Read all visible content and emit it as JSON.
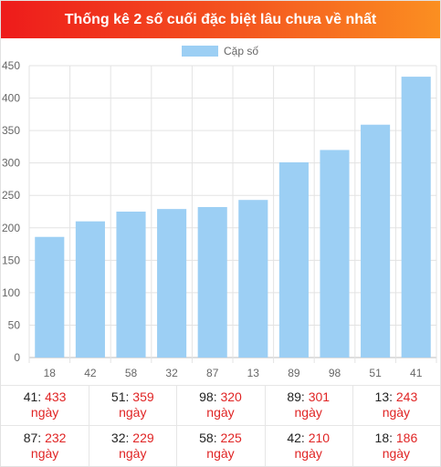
{
  "header": {
    "title": "Thống kê 2 số cuối đặc biệt lâu chưa về nhất"
  },
  "colors": {
    "bar": "#9ccff4",
    "grid": "#e3e3e3",
    "header_start": "#ee1b1b",
    "header_end": "#fb8f21",
    "value": "#e02424"
  },
  "chart_data": {
    "type": "bar",
    "categories": [
      "18",
      "42",
      "58",
      "32",
      "87",
      "13",
      "89",
      "98",
      "51",
      "41"
    ],
    "series": [
      {
        "name": "Cặp số",
        "values": [
          186,
          210,
          225,
          229,
          232,
          243,
          301,
          320,
          359,
          433
        ]
      }
    ],
    "ylim": [
      0,
      450
    ],
    "yticks": [
      0,
      50,
      100,
      150,
      200,
      250,
      300,
      350,
      400,
      450
    ],
    "grid": true,
    "legend": "top-center"
  },
  "stats": {
    "unit": "ngày",
    "rows": [
      [
        {
          "num": "41",
          "days": "433"
        },
        {
          "num": "51",
          "days": "359"
        },
        {
          "num": "98",
          "days": "320"
        },
        {
          "num": "89",
          "days": "301"
        },
        {
          "num": "13",
          "days": "243"
        }
      ],
      [
        {
          "num": "87",
          "days": "232"
        },
        {
          "num": "32",
          "days": "229"
        },
        {
          "num": "58",
          "days": "225"
        },
        {
          "num": "42",
          "days": "210"
        },
        {
          "num": "18",
          "days": "186"
        }
      ]
    ]
  }
}
